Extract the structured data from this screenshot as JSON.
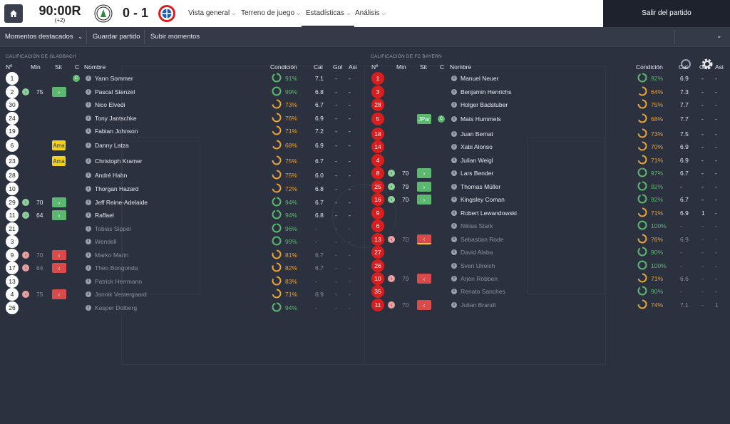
{
  "topbar": {
    "clock": "90:00R",
    "added_time": "(+2)",
    "score": "0 - 1",
    "nav": [
      {
        "label": "Vista general"
      },
      {
        "label": "Terreno de juego"
      },
      {
        "label": "Estadísticas"
      },
      {
        "label": "Análisis"
      }
    ],
    "exit_label": "Salir del partido"
  },
  "subbar": {
    "items": [
      {
        "label": "Momentos destacados"
      },
      {
        "label": "Guardar partido"
      },
      {
        "label": "Subir momentos"
      }
    ]
  },
  "colors": {
    "green": "#5cb86f",
    "orange": "#e8a437",
    "red": "#d81e1e",
    "yellow": "#f3d21b"
  },
  "headers": {
    "num": "Nº",
    "min": "Min",
    "sit": "Sit",
    "c": "C",
    "name": "Nombre",
    "cond": "Condición",
    "cal": "Cal",
    "gol": "Gol",
    "asi": "Asi"
  },
  "home": {
    "title": "CALIFICACIÓN DE GLADBACH",
    "players": [
      {
        "num": "1",
        "min": "",
        "ev": "",
        "sit": "",
        "cap": true,
        "name": "Yann Sommer",
        "cond": "91%",
        "cond_val": 91,
        "cal": "7.1",
        "gol": "-",
        "asi": "-",
        "dim": false
      },
      {
        "num": "2",
        "min": "75",
        "ev": "in",
        "sit": "in",
        "cap": false,
        "name": "Pascal Stenzel",
        "cond": "99%",
        "cond_val": 99,
        "cal": "6.8",
        "gol": "-",
        "asi": "-",
        "dim": false
      },
      {
        "num": "30",
        "min": "",
        "ev": "",
        "sit": "",
        "cap": false,
        "name": "Nico Elvedi",
        "cond": "73%",
        "cond_val": 73,
        "cal": "6.7",
        "gol": "-",
        "asi": "-",
        "dim": false
      },
      {
        "num": "24",
        "min": "",
        "ev": "",
        "sit": "",
        "cap": false,
        "name": "Tony Jantschke",
        "cond": "76%",
        "cond_val": 76,
        "cal": "6.9",
        "gol": "-",
        "asi": "-",
        "dim": false
      },
      {
        "num": "19",
        "min": "",
        "ev": "",
        "sit": "",
        "cap": false,
        "name": "Fabian Johnson",
        "cond": "71%",
        "cond_val": 71,
        "cal": "7.2",
        "gol": "-",
        "asi": "-",
        "dim": false
      },
      {
        "num": "6",
        "min": "",
        "ev": "",
        "sit": "yellow",
        "cap": false,
        "name": "Danny Latza",
        "cond": "68%",
        "cond_val": 68,
        "cal": "6.9",
        "gol": "-",
        "asi": "-",
        "dim": false
      },
      {
        "num": "23",
        "min": "",
        "ev": "",
        "sit": "yellow",
        "cap": false,
        "name": "Christoph Kramer",
        "cond": "75%",
        "cond_val": 75,
        "cal": "6.7",
        "gol": "-",
        "asi": "-",
        "dim": false
      },
      {
        "num": "28",
        "min": "",
        "ev": "",
        "sit": "",
        "cap": false,
        "name": "André Hahn",
        "cond": "75%",
        "cond_val": 75,
        "cal": "6.0",
        "gol": "-",
        "asi": "-",
        "dim": false
      },
      {
        "num": "10",
        "min": "",
        "ev": "",
        "sit": "",
        "cap": false,
        "name": "Thorgan Hazard",
        "cond": "72%",
        "cond_val": 72,
        "cal": "6.8",
        "gol": "-",
        "asi": "-",
        "dim": false
      },
      {
        "num": "29",
        "min": "70",
        "ev": "in",
        "sit": "in",
        "cap": false,
        "name": "Jeff Reine-Adelaide",
        "cond": "94%",
        "cond_val": 94,
        "cal": "6.7",
        "gol": "-",
        "asi": "-",
        "dim": false
      },
      {
        "num": "11",
        "min": "64",
        "ev": "in",
        "sit": "in",
        "cap": false,
        "name": "Raffael",
        "cond": "94%",
        "cond_val": 94,
        "cal": "6.8",
        "gol": "-",
        "asi": "-",
        "dim": false
      },
      {
        "num": "21",
        "min": "",
        "ev": "",
        "sit": "",
        "cap": false,
        "name": "Tobias Sippel",
        "cond": "96%",
        "cond_val": 96,
        "cal": "-",
        "gol": "-",
        "asi": "-",
        "dim": true
      },
      {
        "num": "3",
        "min": "",
        "ev": "",
        "sit": "",
        "cap": false,
        "name": "Wendell",
        "cond": "99%",
        "cond_val": 99,
        "cal": "-",
        "gol": "-",
        "asi": "-",
        "dim": true
      },
      {
        "num": "9",
        "min": "70",
        "ev": "out",
        "sit": "out",
        "cap": false,
        "name": "Marko Marin",
        "cond": "81%",
        "cond_val": 81,
        "cal": "6.7",
        "gol": "-",
        "asi": "-",
        "dim": true
      },
      {
        "num": "17",
        "min": "64",
        "ev": "out",
        "sit": "out",
        "cap": false,
        "name": "Theo Bongonda",
        "cond": "82%",
        "cond_val": 82,
        "cal": "6.7",
        "gol": "-",
        "asi": "-",
        "dim": true
      },
      {
        "num": "13",
        "min": "",
        "ev": "",
        "sit": "",
        "cap": false,
        "name": "Patrick Herrmann",
        "cond": "83%",
        "cond_val": 83,
        "cal": "-",
        "gol": "-",
        "asi": "-",
        "dim": true
      },
      {
        "num": "4",
        "min": "75",
        "ev": "out",
        "sit": "out",
        "cap": false,
        "name": "Jannik Vestergaard",
        "cond": "71%",
        "cond_val": 71,
        "cal": "6.9",
        "gol": "-",
        "asi": "-",
        "dim": true
      },
      {
        "num": "26",
        "min": "",
        "ev": "",
        "sit": "",
        "cap": false,
        "name": "Kasper Dolberg",
        "cond": "94%",
        "cond_val": 94,
        "cal": "-",
        "gol": "-",
        "asi": "-",
        "dim": true
      }
    ]
  },
  "away": {
    "title": "CALIFICACIÓN DE FC BAYERN",
    "players": [
      {
        "num": "1",
        "min": "",
        "ev": "",
        "sit": "",
        "cap": false,
        "name": "Manuel Neuer",
        "cond": "92%",
        "cond_val": 92,
        "cal": "6.9",
        "gol": "-",
        "asi": "-",
        "dim": false
      },
      {
        "num": "3",
        "min": "",
        "ev": "",
        "sit": "",
        "cap": false,
        "name": "Benjamin Henrichs",
        "cond": "64%",
        "cond_val": 64,
        "cal": "7.3",
        "gol": "-",
        "asi": "-",
        "dim": false
      },
      {
        "num": "28",
        "min": "",
        "ev": "",
        "sit": "",
        "cap": false,
        "name": "Holger Badstuber",
        "cond": "75%",
        "cond_val": 75,
        "cal": "7.7",
        "gol": "-",
        "asi": "-",
        "dim": false
      },
      {
        "num": "5",
        "min": "",
        "ev": "",
        "sit": "jpar",
        "cap": true,
        "name": "Mats Hummels",
        "cond": "68%",
        "cond_val": 68,
        "cal": "7.7",
        "gol": "-",
        "asi": "-",
        "dim": false
      },
      {
        "num": "18",
        "min": "",
        "ev": "",
        "sit": "",
        "cap": false,
        "name": "Juan Bernat",
        "cond": "73%",
        "cond_val": 73,
        "cal": "7.5",
        "gol": "-",
        "asi": "-",
        "dim": false
      },
      {
        "num": "14",
        "min": "",
        "ev": "",
        "sit": "",
        "cap": false,
        "name": "Xabi Alonso",
        "cond": "70%",
        "cond_val": 70,
        "cal": "6.9",
        "gol": "-",
        "asi": "-",
        "dim": false
      },
      {
        "num": "4",
        "min": "",
        "ev": "",
        "sit": "",
        "cap": false,
        "name": "Julian Weigl",
        "cond": "71%",
        "cond_val": 71,
        "cal": "6.9",
        "gol": "-",
        "asi": "-",
        "dim": false
      },
      {
        "num": "8",
        "min": "70",
        "ev": "in",
        "sit": "in",
        "cap": false,
        "name": "Lars Bender",
        "cond": "97%",
        "cond_val": 97,
        "cal": "6.7",
        "gol": "-",
        "asi": "-",
        "dim": false
      },
      {
        "num": "25",
        "min": "79",
        "ev": "in",
        "sit": "in",
        "cap": false,
        "name": "Thomas Müller",
        "cond": "92%",
        "cond_val": 92,
        "cal": "-",
        "gol": "-",
        "asi": "-",
        "dim": false
      },
      {
        "num": "16",
        "min": "70",
        "ev": "in",
        "sit": "in",
        "cap": false,
        "name": "Kingsley Coman",
        "cond": "92%",
        "cond_val": 92,
        "cal": "6.7",
        "gol": "-",
        "asi": "-",
        "dim": false
      },
      {
        "num": "9",
        "min": "",
        "ev": "",
        "sit": "",
        "cap": false,
        "name": "Robert Lewandowski",
        "cond": "71%",
        "cond_val": 71,
        "cal": "6.9",
        "gol": "1",
        "asi": "-",
        "dim": false
      },
      {
        "num": "6",
        "min": "",
        "ev": "",
        "sit": "",
        "cap": false,
        "name": "Niklas Stark",
        "cond": "100%",
        "cond_val": 100,
        "cal": "-",
        "gol": "-",
        "asi": "-",
        "dim": true
      },
      {
        "num": "13",
        "min": "70",
        "ev": "out",
        "sit": "out-yellow",
        "cap": false,
        "name": "Sebastian Rode",
        "cond": "76%",
        "cond_val": 76,
        "cal": "6.9",
        "gol": "-",
        "asi": "-",
        "dim": true
      },
      {
        "num": "27",
        "min": "",
        "ev": "",
        "sit": "",
        "cap": false,
        "name": "David Alaba",
        "cond": "90%",
        "cond_val": 90,
        "cal": "-",
        "gol": "-",
        "asi": "-",
        "dim": true
      },
      {
        "num": "26",
        "min": "",
        "ev": "",
        "sit": "",
        "cap": false,
        "name": "Sven Ulreich",
        "cond": "100%",
        "cond_val": 100,
        "cal": "-",
        "gol": "-",
        "asi": "-",
        "dim": true
      },
      {
        "num": "10",
        "min": "79",
        "ev": "out",
        "sit": "out",
        "cap": false,
        "name": "Arjen Robben",
        "cond": "71%",
        "cond_val": 71,
        "cal": "6.6",
        "gol": "-",
        "asi": "-",
        "dim": true
      },
      {
        "num": "35",
        "min": "",
        "ev": "",
        "sit": "",
        "cap": false,
        "name": "Renato Sanches",
        "cond": "90%",
        "cond_val": 90,
        "cal": "-",
        "gol": "-",
        "asi": "-",
        "dim": true
      },
      {
        "num": "11",
        "min": "70",
        "ev": "out",
        "sit": "out",
        "cap": false,
        "name": "Julian Brandt",
        "cond": "74%",
        "cond_val": 74,
        "cal": "7.1",
        "gol": "-",
        "asi": "1",
        "dim": true
      }
    ]
  },
  "labels": {
    "yellow_card": "Ama",
    "jpar": "JPar",
    "captain": "C",
    "info": "i"
  }
}
